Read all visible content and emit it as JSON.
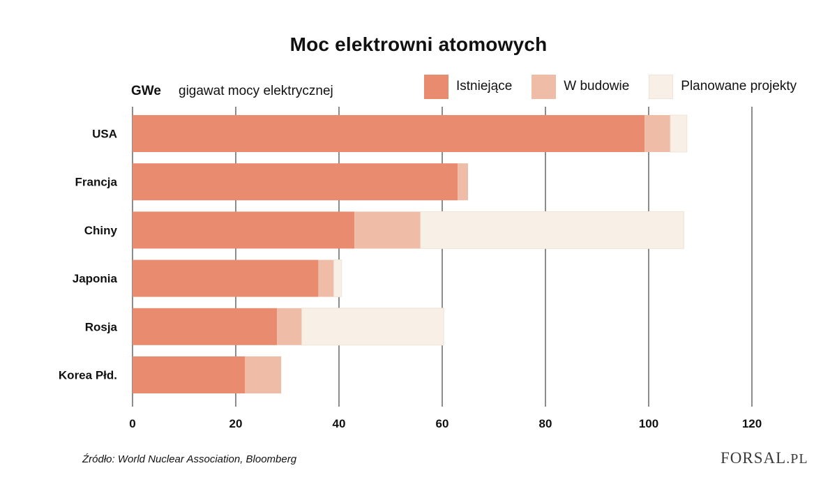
{
  "chart_data": {
    "type": "bar",
    "orientation": "horizontal",
    "stacked": true,
    "title": "Moc elektrowni atomowych",
    "unit_abbr": "GWe",
    "unit_desc": "gigawat mocy elektrycznej",
    "categories": [
      "USA",
      "Francja",
      "Chiny",
      "Japonia",
      "Rosja",
      "Korea Płd."
    ],
    "series": [
      {
        "name": "Istniejące",
        "color": "#e98b6e",
        "values": [
          99.2,
          63,
          43,
          36,
          28,
          21.8
        ]
      },
      {
        "name": "W budowie",
        "color": "#efbca8",
        "values": [
          5,
          2,
          12.8,
          3,
          4.8,
          7
        ]
      },
      {
        "name": "Planowane projekty",
        "color": "#f8f0e6",
        "values": [
          3.2,
          0,
          51,
          1.5,
          27.5,
          0
        ]
      }
    ],
    "x_ticks": [
      0,
      20,
      40,
      60,
      80,
      100,
      120
    ],
    "xlim": [
      0,
      120
    ],
    "grid": true,
    "legend_position": "top-right"
  },
  "source": "Źródło: World Nuclear Association, Bloomberg",
  "logo": {
    "main": "FORSAL",
    "suffix": ".PL"
  }
}
